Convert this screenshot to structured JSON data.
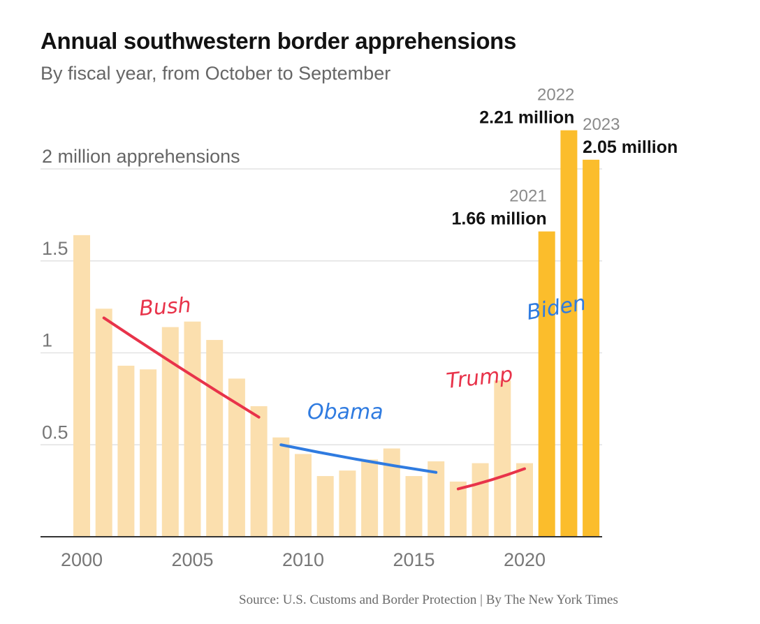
{
  "title": "Annual southwestern border apprehensions",
  "subtitle": "By fiscal year, from October to September",
  "source": "Source: U.S. Customs and Border Protection | By The New York Times",
  "colors": {
    "bar_light": "#fbdfae",
    "bar_highlight": "#fbbd2c",
    "grid": "#e2e2e2",
    "axis": "#333333",
    "annotation_red": "#e8334a",
    "annotation_blue": "#2f7be0"
  },
  "chart_data": {
    "type": "bar",
    "x": [
      2000,
      2001,
      2002,
      2003,
      2004,
      2005,
      2006,
      2007,
      2008,
      2009,
      2010,
      2011,
      2012,
      2013,
      2014,
      2015,
      2016,
      2017,
      2018,
      2019,
      2020,
      2021,
      2022,
      2023
    ],
    "values": [
      1.64,
      1.24,
      0.93,
      0.91,
      1.14,
      1.17,
      1.07,
      0.86,
      0.71,
      0.54,
      0.45,
      0.33,
      0.36,
      0.42,
      0.48,
      0.33,
      0.41,
      0.3,
      0.4,
      0.85,
      0.4,
      1.66,
      2.21,
      2.05
    ],
    "highlighted": [
      2021,
      2022,
      2023
    ],
    "ylim": [
      0,
      2.21
    ],
    "y_ticks": [
      {
        "value": 0.5,
        "label": "0.5"
      },
      {
        "value": 1,
        "label": "1"
      },
      {
        "value": 1.5,
        "label": "1.5"
      },
      {
        "value": 2,
        "label": "2 million apprehensions"
      }
    ],
    "x_ticks": [
      2000,
      2005,
      2010,
      2015,
      2020
    ],
    "bar_labels": [
      {
        "year": "2021",
        "value": "1.66 million",
        "x": 2021
      },
      {
        "year": "2022",
        "value": "2.21 million",
        "x": 2022
      },
      {
        "year": "2023",
        "value": "2.05 million",
        "x": 2023
      }
    ],
    "annotations": [
      {
        "text": "Bush",
        "color": "red",
        "trend": [
          [
            2001,
            1.19
          ],
          [
            2008,
            0.65
          ]
        ]
      },
      {
        "text": "Obama",
        "color": "blue",
        "trend": [
          [
            2009,
            0.5
          ],
          [
            2016,
            0.35
          ]
        ]
      },
      {
        "text": "Trump",
        "color": "red",
        "trend": [
          [
            2017,
            0.26
          ],
          [
            2020,
            0.37
          ]
        ]
      },
      {
        "text": "Biden",
        "color": "blue",
        "trend": []
      }
    ],
    "grid": true,
    "legend": "none"
  }
}
